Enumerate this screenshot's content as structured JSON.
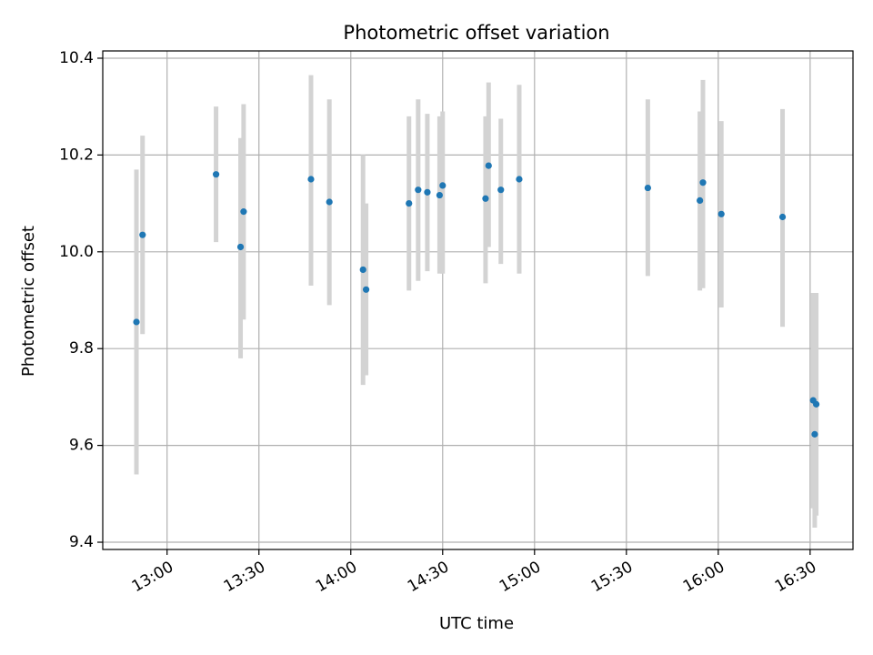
{
  "chart_data": {
    "type": "scatter",
    "title": "Photometric offset variation",
    "xlabel": "UTC time",
    "ylabel": "Photometric offset",
    "xlim": [
      "12:39",
      "16:44"
    ],
    "ylim": [
      9.385,
      10.415
    ],
    "grid": true,
    "x_ticks": [
      "13:00",
      "13:30",
      "14:00",
      "14:30",
      "15:00",
      "15:30",
      "16:00",
      "16:30"
    ],
    "y_ticks": [
      "9.4",
      "9.6",
      "9.8",
      "10.0",
      "10.2",
      "10.4"
    ],
    "colors": {
      "point": "#1f77b4",
      "errorbar": "#d3d3d3",
      "grid": "#b0b0b0"
    },
    "points": [
      {
        "x": "12:50",
        "y": 9.855,
        "ylo": 9.54,
        "yhi": 10.17
      },
      {
        "x": "12:52",
        "y": 10.035,
        "ylo": 9.83,
        "yhi": 10.24
      },
      {
        "x": "13:16",
        "y": 10.16,
        "ylo": 10.02,
        "yhi": 10.3
      },
      {
        "x": "13:24",
        "y": 10.01,
        "ylo": 9.78,
        "yhi": 10.235
      },
      {
        "x": "13:25",
        "y": 10.083,
        "ylo": 9.86,
        "yhi": 10.305
      },
      {
        "x": "13:47",
        "y": 10.15,
        "ylo": 9.93,
        "yhi": 10.365
      },
      {
        "x": "13:53",
        "y": 10.103,
        "ylo": 9.89,
        "yhi": 10.315
      },
      {
        "x": "14:04",
        "y": 9.963,
        "ylo": 9.725,
        "yhi": 10.2
      },
      {
        "x": "14:05",
        "y": 9.922,
        "ylo": 9.745,
        "yhi": 10.1
      },
      {
        "x": "14:19",
        "y": 10.1,
        "ylo": 9.92,
        "yhi": 10.28
      },
      {
        "x": "14:22",
        "y": 10.128,
        "ylo": 9.94,
        "yhi": 10.315
      },
      {
        "x": "14:25",
        "y": 10.123,
        "ylo": 9.96,
        "yhi": 10.285
      },
      {
        "x": "14:29",
        "y": 10.117,
        "ylo": 9.955,
        "yhi": 10.28
      },
      {
        "x": "14:30",
        "y": 10.137,
        "ylo": 9.955,
        "yhi": 10.29
      },
      {
        "x": "14:44",
        "y": 10.11,
        "ylo": 9.935,
        "yhi": 10.28
      },
      {
        "x": "14:45",
        "y": 10.178,
        "ylo": 10.01,
        "yhi": 10.35
      },
      {
        "x": "14:49",
        "y": 10.128,
        "ylo": 9.975,
        "yhi": 10.275
      },
      {
        "x": "14:55",
        "y": 10.15,
        "ylo": 9.955,
        "yhi": 10.345
      },
      {
        "x": "15:37",
        "y": 10.132,
        "ylo": 9.95,
        "yhi": 10.315
      },
      {
        "x": "15:54",
        "y": 10.106,
        "ylo": 9.92,
        "yhi": 10.29
      },
      {
        "x": "15:55",
        "y": 10.143,
        "ylo": 9.925,
        "yhi": 10.355
      },
      {
        "x": "16:01",
        "y": 10.078,
        "ylo": 9.885,
        "yhi": 10.27
      },
      {
        "x": "16:21",
        "y": 10.072,
        "ylo": 9.845,
        "yhi": 10.295
      },
      {
        "x": "16:31",
        "y": 9.693,
        "ylo": 9.47,
        "yhi": 9.915
      },
      {
        "x": "16:31:30",
        "y": 9.623,
        "ylo": 9.43,
        "yhi": 9.81
      },
      {
        "x": "16:32",
        "y": 9.685,
        "ylo": 9.455,
        "yhi": 9.915
      }
    ]
  }
}
